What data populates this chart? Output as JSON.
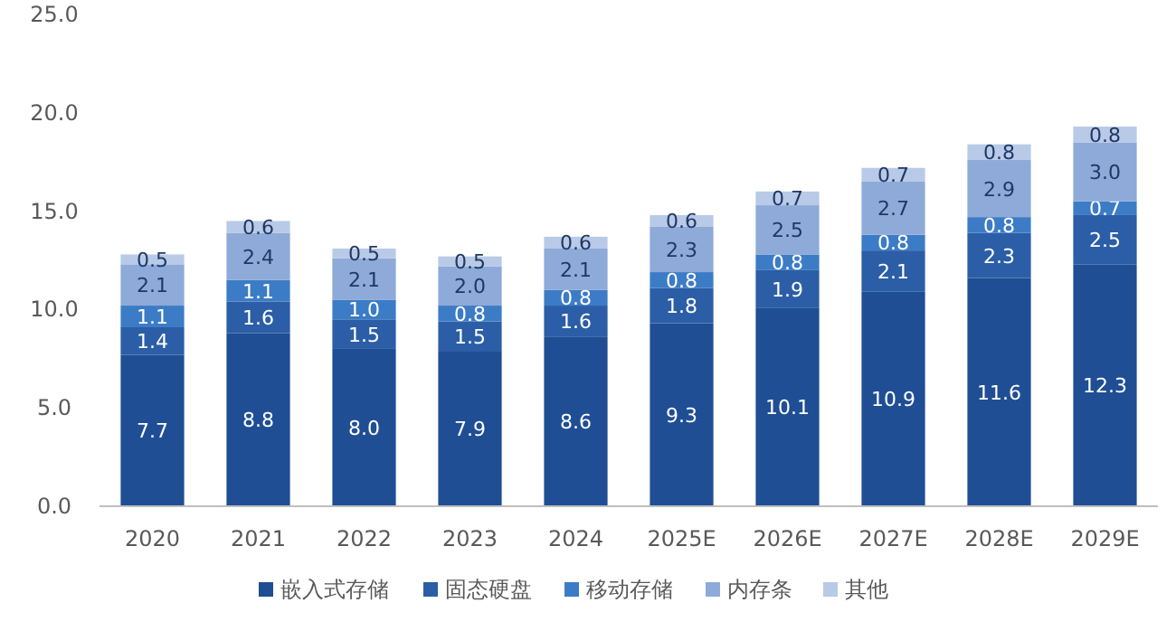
{
  "chart_data": {
    "type": "bar",
    "stacked": true,
    "legend": "bottom",
    "grid": false,
    "categories": [
      "2020",
      "2021",
      "2022",
      "2023",
      "2024",
      "2025E",
      "2026E",
      "2027E",
      "2028E",
      "2029E"
    ],
    "ylim": [
      0,
      25
    ],
    "yticks": [
      {
        "value": 0,
        "label": "0.0"
      },
      {
        "value": 5,
        "label": "5.0"
      },
      {
        "value": 10,
        "label": "10.0"
      },
      {
        "value": 15,
        "label": "15.0"
      },
      {
        "value": 20,
        "label": "20.0"
      },
      {
        "value": 25,
        "label": "25.0"
      }
    ],
    "series": [
      {
        "name": "嵌入式存储",
        "color": "#1f4e94",
        "values": [
          7.7,
          8.8,
          8.0,
          7.9,
          8.6,
          9.3,
          10.1,
          10.9,
          11.6,
          12.3
        ],
        "value_labels": [
          "7.7",
          "8.8",
          "8.0",
          "7.9",
          "8.6",
          "9.3",
          "10.1",
          "10.9",
          "11.6",
          "12.3"
        ]
      },
      {
        "name": "固态硬盘",
        "color": "#2b5ea6",
        "values": [
          1.4,
          1.6,
          1.5,
          1.5,
          1.6,
          1.8,
          1.9,
          2.1,
          2.3,
          2.5
        ],
        "value_labels": [
          "1.4",
          "1.6",
          "1.5",
          "1.5",
          "1.6",
          "1.8",
          "1.9",
          "2.1",
          "2.3",
          "2.5"
        ]
      },
      {
        "name": "移动存储",
        "color": "#3c7cc6",
        "values": [
          1.1,
          1.1,
          1.0,
          0.8,
          0.8,
          0.8,
          0.8,
          0.8,
          0.8,
          0.7
        ],
        "value_labels": [
          "1.1",
          "1.1",
          "1.0",
          "0.8",
          "0.8",
          "0.8",
          "0.8",
          "0.8",
          "0.8",
          "0.7"
        ]
      },
      {
        "name": "内存条",
        "color": "#8eaad8",
        "values": [
          2.1,
          2.4,
          2.1,
          2.0,
          2.1,
          2.3,
          2.5,
          2.7,
          2.9,
          3.0
        ],
        "value_labels": [
          "2.1",
          "2.4",
          "2.1",
          "2.0",
          "2.1",
          "2.3",
          "2.5",
          "2.7",
          "2.9",
          "3.0"
        ]
      },
      {
        "name": "其他",
        "color": "#b8cae7",
        "values": [
          0.5,
          0.6,
          0.5,
          0.5,
          0.6,
          0.6,
          0.7,
          0.7,
          0.8,
          0.8
        ],
        "value_labels": [
          "0.5",
          "0.6",
          "0.5",
          "0.5",
          "0.6",
          "0.6",
          "0.7",
          "0.7",
          "0.8",
          "0.8"
        ]
      }
    ]
  }
}
